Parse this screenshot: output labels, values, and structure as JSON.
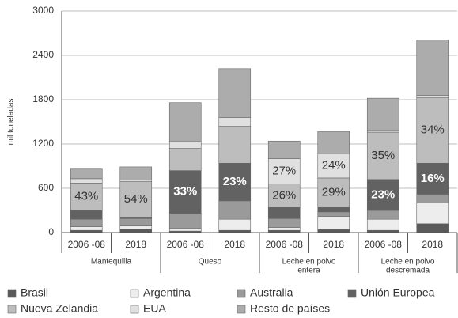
{
  "chart_data": {
    "type": "stacked-bar",
    "y_label": "mil toneladas",
    "groups": [
      {
        "name": [
          "Mantequilla"
        ],
        "categories": [
          "2006 -08",
          "2018"
        ]
      },
      {
        "name": [
          "Queso"
        ],
        "categories": [
          "2006 -08",
          "2018"
        ]
      },
      {
        "name": [
          "Leche en polvo",
          "entera"
        ],
        "categories": [
          "2006 -08",
          "2018"
        ]
      },
      {
        "name": [
          "Leche en polvo",
          "descremada"
        ],
        "categories": [
          "2006 -08",
          "2018"
        ]
      }
    ],
    "series": [
      {
        "name": "Brasil",
        "color": "#5a5a5a",
        "values": [
          30,
          50,
          20,
          30,
          30,
          40,
          30,
          120
        ]
      },
      {
        "name": "Argentina",
        "color": "#ededed",
        "values": [
          50,
          40,
          40,
          150,
          40,
          180,
          150,
          280
        ]
      },
      {
        "name": "Australia",
        "color": "#9a9a9a",
        "values": [
          100,
          100,
          200,
          250,
          120,
          60,
          120,
          120
        ]
      },
      {
        "name": "Unión Europea",
        "color": "#626262",
        "values": [
          120,
          20,
          580,
          510,
          150,
          60,
          420,
          420
        ],
        "share_labels": [
          null,
          null,
          "33%",
          "23%",
          null,
          null,
          "23%",
          "16%"
        ]
      },
      {
        "name": "Nueva Zelandia",
        "color": "#bdbdbd",
        "values": [
          370,
          480,
          300,
          500,
          320,
          400,
          640,
          890
        ],
        "share_labels": [
          "43%",
          "54%",
          null,
          null,
          "26%",
          "29%",
          "35%",
          "34%"
        ]
      },
      {
        "name": "EUA",
        "color": "#e0e0e0",
        "values": [
          60,
          20,
          100,
          120,
          340,
          330,
          30,
          30
        ],
        "share_labels": [
          null,
          null,
          null,
          null,
          "27%",
          "24%",
          null,
          null
        ]
      },
      {
        "name": "Resto de países",
        "color": "#acacac",
        "values": [
          130,
          180,
          520,
          660,
          240,
          300,
          430,
          750
        ]
      }
    ],
    "ylim": [
      0,
      3000
    ],
    "yticks": [
      0,
      600,
      1200,
      1800,
      2400,
      3000
    ],
    "grid": true
  }
}
